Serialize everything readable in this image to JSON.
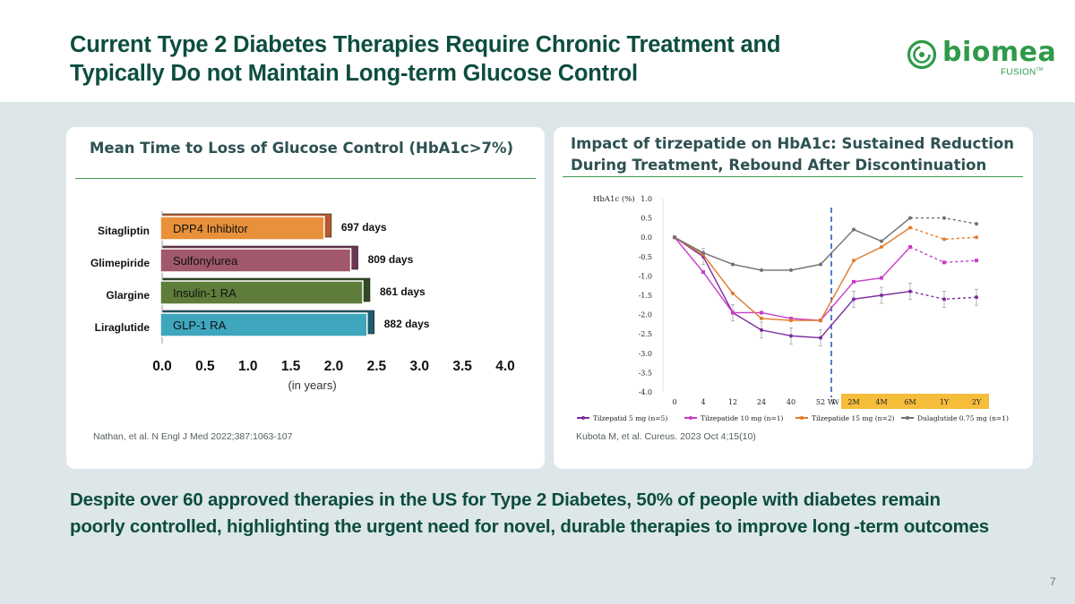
{
  "slide": {
    "title_line1": "Current Type 2 Diabetes Therapies Require Chronic Treatment and",
    "title_line2": "Typically Do not Maintain Long-term Glucose Control",
    "logo_word": "biomea",
    "logo_sub": "FUSION",
    "logo_tm": "TM",
    "bottom_line1": "Despite over 60 approved therapies in the US for Type 2 Diabetes, 50% of people with diabetes remain",
    "bottom_line2": "poorly controlled, highlighting the urgent need for novel, durable therapies to improve long -term outcomes",
    "page_number": "7",
    "colors": {
      "title": "#0d4d3f",
      "brand_green": "#2f9a4a",
      "band": "#dde6e8",
      "card_title": "#2e5152"
    }
  },
  "left_card": {
    "title": "Mean Time to Loss of Glucose Control (HbA1c>7%)",
    "source": "Nathan, et al. N Engl J Med 2022;387:1063-107"
  },
  "right_card": {
    "title_line1": "Impact of tirzepatide on HbA1c: Sustained Reduction",
    "title_line2": "During Treatment, Rebound After Discontinuation",
    "source": "Kubota M, et al. Cureus. 2023 Oct 4;15(10)"
  },
  "chart_data": [
    {
      "type": "bar",
      "orientation": "horizontal",
      "title": "Mean Time to Loss of Glucose Control (HbA1c>7%)",
      "categories": [
        "Sitagliptin",
        "Glimepiride",
        "Glargine",
        "Liraglutide"
      ],
      "bar_labels": [
        "DPP4 Inhibitor",
        "Sulfonylurea",
        "Insulin-1 RA",
        "GLP-1 RA"
      ],
      "values": [
        1.91,
        2.22,
        2.36,
        2.41
      ],
      "value_labels": [
        "697 days",
        "809 days",
        "861 days",
        "882 days"
      ],
      "colors": [
        "#e8913a",
        "#a0586a",
        "#5e7d3a",
        "#3ea6bd"
      ],
      "shadow_colors": [
        "#b55a2e",
        "#6a3650",
        "#2f4a22",
        "#1f5a6e"
      ],
      "xlabel": "(in years)",
      "xlim": [
        0,
        4
      ],
      "xticks": [
        "0.0",
        "0.5",
        "1.0",
        "1.5",
        "2.0",
        "2.5",
        "3.0",
        "3.5",
        "4.0"
      ]
    },
    {
      "type": "line",
      "title": "Impact of tirzepatide on HbA1c",
      "ylabel": "HbA1c (%)",
      "ylim": [
        -4.0,
        1.0
      ],
      "yticks": [
        "1.0",
        "0.5",
        "0.0",
        "-0.5",
        "-1.0",
        "-1.5",
        "-2.0",
        "-2.5",
        "-3.0",
        "-3.5",
        "-4.0"
      ],
      "x_categories": [
        "0",
        "4",
        "12",
        "24",
        "40",
        "52",
        "W",
        "2M",
        "4M",
        "6M",
        "1Y",
        "2Y"
      ],
      "highlighted_x": [
        "2M",
        "4M",
        "6M",
        "1Y",
        "2Y"
      ],
      "series": [
        {
          "name": "Tilzepatid 5 mg (n=5)",
          "legend": "Tilzepatid  5 mg (n=5)",
          "color": "#7d2b9e",
          "marker": "circle",
          "values": [
            0.0,
            -0.5,
            -1.95,
            -2.4,
            -2.55,
            -2.6,
            null,
            -1.6,
            -1.5,
            -1.4,
            -1.6,
            -1.55
          ],
          "dashed_after": "6M"
        },
        {
          "name": "Tilzepatide 10 mg (n=1)",
          "legend": "Tilzepatide  10 mg (n=1)",
          "color": "#c93bc9",
          "marker": "square",
          "values": [
            0.0,
            -0.9,
            -1.95,
            -1.95,
            -2.1,
            -2.15,
            null,
            -1.15,
            -1.05,
            -0.25,
            -0.65,
            -0.6
          ],
          "dashed_after": "6M"
        },
        {
          "name": "Tilzepatide 15 mg (n=2)",
          "legend": "Tilzepatide 15 mg (n=2)",
          "color": "#e07a2a",
          "marker": "circle",
          "values": [
            0.0,
            -0.45,
            -1.45,
            -2.1,
            -2.15,
            -2.15,
            null,
            -0.6,
            -0.25,
            0.25,
            -0.05,
            0.0
          ],
          "dashed_after": "6M"
        },
        {
          "name": "Dulaglutide 0.75 mg (n=1)",
          "legend": "Dulaglutide 0.75 mg (n=1)",
          "color": "#707070",
          "marker": "circle",
          "values": [
            0.0,
            -0.4,
            -0.7,
            -0.85,
            -0.85,
            -0.7,
            null,
            0.2,
            -0.1,
            0.5,
            0.5,
            0.35
          ],
          "dashed_after": "6M"
        }
      ],
      "withdrawal_marker": "W"
    }
  ]
}
